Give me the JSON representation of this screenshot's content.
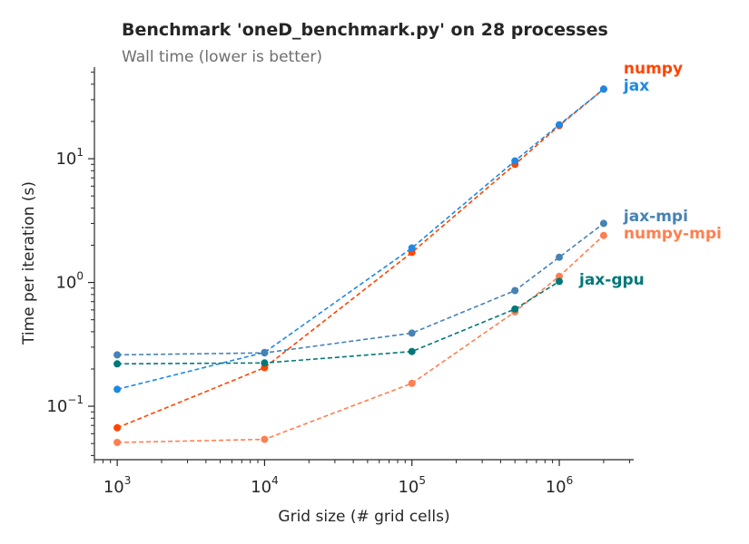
{
  "chart_data": {
    "type": "line",
    "title": "Benchmark 'oneD_benchmark.py' on 28 processes",
    "subtitle": "Wall time (lower is better)",
    "xlabel": "Grid size (# grid cells)",
    "ylabel": "Time per iteration (s)",
    "xscale": "log",
    "yscale": "log",
    "xlim": [
      700,
      3200000
    ],
    "ylim": [
      0.037,
      55
    ],
    "x_ticks": [
      {
        "value": 1000,
        "base": "10",
        "exp": "3"
      },
      {
        "value": 10000,
        "base": "10",
        "exp": "4"
      },
      {
        "value": 100000,
        "base": "10",
        "exp": "5"
      },
      {
        "value": 1000000,
        "base": "10",
        "exp": "6"
      }
    ],
    "y_ticks": [
      {
        "value": 0.1,
        "base": "10",
        "exp": "−1"
      },
      {
        "value": 1,
        "base": "10",
        "exp": "0"
      },
      {
        "value": 10,
        "base": "10",
        "exp": "1"
      }
    ],
    "grid": false,
    "legend": "direct labels at right end of each series",
    "series": [
      {
        "name": "numpy",
        "color": "#ff4500",
        "x": [
          1000,
          10000,
          100000,
          500000,
          1000000,
          2000000
        ],
        "y": [
          0.067,
          0.205,
          1.75,
          9.0,
          18.5,
          36.5
        ]
      },
      {
        "name": "jax",
        "color": "#1e88e5",
        "x": [
          1000,
          10000,
          100000,
          500000,
          1000000,
          2000000
        ],
        "y": [
          0.137,
          0.272,
          1.9,
          9.6,
          18.8,
          36.5
        ]
      },
      {
        "name": "jax-mpi",
        "color": "#4682b4",
        "x": [
          1000,
          10000,
          100000,
          500000,
          1000000,
          2000000
        ],
        "y": [
          0.26,
          0.27,
          0.39,
          0.86,
          1.6,
          3.0
        ]
      },
      {
        "name": "numpy-mpi",
        "color": "#ff7f50",
        "x": [
          1000,
          10000,
          100000,
          500000,
          1000000,
          2000000
        ],
        "y": [
          0.051,
          0.054,
          0.153,
          0.58,
          1.12,
          2.4
        ]
      },
      {
        "name": "jax-gpu",
        "color": "#00787a",
        "x": [
          1000,
          10000,
          100000,
          500000,
          1000000
        ],
        "y": [
          0.22,
          0.224,
          0.277,
          0.61,
          1.02
        ]
      }
    ]
  }
}
